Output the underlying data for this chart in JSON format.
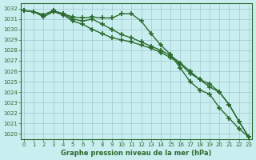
{
  "x": [
    0,
    1,
    2,
    3,
    4,
    5,
    6,
    7,
    8,
    9,
    10,
    11,
    12,
    13,
    14,
    15,
    16,
    17,
    18,
    19,
    20,
    21,
    22,
    23
  ],
  "line1": [
    1031.8,
    1031.7,
    1031.4,
    1031.8,
    1031.5,
    1031.2,
    1031.1,
    1031.2,
    1031.1,
    1031.1,
    1031.5,
    1031.5,
    1030.8,
    1029.6,
    1028.5,
    1027.6,
    1026.3,
    1025.0,
    1024.2,
    1023.8,
    1022.5,
    1021.5,
    1020.5,
    1019.7
  ],
  "line2": [
    1031.8,
    1031.7,
    1031.4,
    1031.8,
    1031.5,
    1031.0,
    1030.8,
    1031.0,
    1030.5,
    1030.0,
    1029.5,
    1029.2,
    1028.8,
    1028.4,
    1028.0,
    1027.5,
    1026.8,
    1026.0,
    1025.2,
    1024.5,
    1024.0,
    1022.8,
    1021.2,
    1019.7
  ],
  "line3": [
    1031.8,
    1031.7,
    1031.2,
    1031.7,
    1031.4,
    1030.8,
    1030.5,
    1030.0,
    1029.6,
    1029.2,
    1029.0,
    1028.8,
    1028.5,
    1028.2,
    1027.8,
    1027.3,
    1026.7,
    1025.8,
    1025.2,
    1024.8,
    1024.0,
    1022.8,
    1021.2,
    1019.7
  ],
  "line_color": "#2d6a2d",
  "bg_color": "#c8eef0",
  "grid_color": "#a0c8d0",
  "xlabel": "Graphe pression niveau de la mer (hPa)",
  "ylabel_ticks": [
    1020,
    1021,
    1022,
    1023,
    1024,
    1025,
    1026,
    1027,
    1028,
    1029,
    1030,
    1031,
    1032
  ],
  "ylim": [
    1019.5,
    1032.5
  ],
  "xlim": [
    -0.3,
    23.3
  ],
  "marker": "+"
}
